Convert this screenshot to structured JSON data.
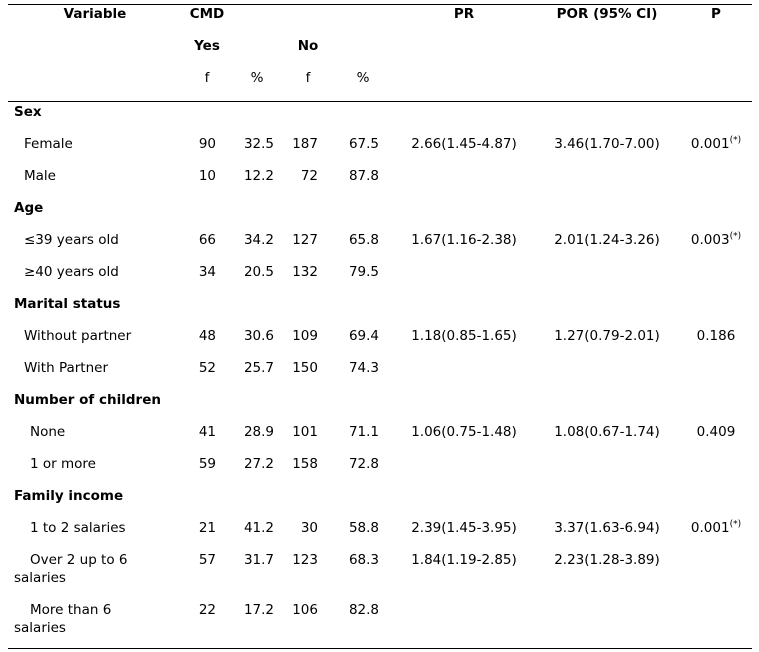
{
  "header": {
    "variable": "Variable",
    "cmd": "CMD",
    "yes": "Yes",
    "no": "No",
    "pr": "PR",
    "por": "POR (95% CI)",
    "p": "P",
    "f1": "f",
    "pct1": "%",
    "f2": "f",
    "pct2": "%"
  },
  "sections": [
    {
      "label": "Sex",
      "rows": [
        {
          "label": "Female",
          "yes_f": "90",
          "yes_pct": "32.5",
          "no_f": "187",
          "no_pct": "67.5",
          "pr": "2.66(1.45-4.87)",
          "por": "3.46(1.70-7.00)",
          "p": "0.001",
          "p_note": "(*)"
        },
        {
          "label": "Male",
          "yes_f": "10",
          "yes_pct": "12.2",
          "no_f": "72",
          "no_pct": "87.8",
          "pr": "",
          "por": "",
          "p": "",
          "p_note": ""
        }
      ]
    },
    {
      "label": "Age",
      "rows": [
        {
          "label": "≤39 years old",
          "yes_f": "66",
          "yes_pct": "34.2",
          "no_f": "127",
          "no_pct": "65.8",
          "pr": "1.67(1.16-2.38)",
          "por": "2.01(1.24-3.26)",
          "p": "0.003",
          "p_note": "(*)"
        },
        {
          "label": "≥40 years old",
          "yes_f": "34",
          "yes_pct": "20.5",
          "no_f": "132",
          "no_pct": "79.5",
          "pr": "",
          "por": "",
          "p": "",
          "p_note": ""
        }
      ]
    },
    {
      "label": "Marital status",
      "rows": [
        {
          "label": "Without partner",
          "yes_f": "48",
          "yes_pct": "30.6",
          "no_f": "109",
          "no_pct": "69.4",
          "pr": "1.18(0.85-1.65)",
          "por": "1.27(0.79-2.01)",
          "p": "0.186",
          "p_note": ""
        },
        {
          "label": "With Partner",
          "yes_f": "52",
          "yes_pct": "25.7",
          "no_f": "150",
          "no_pct": "74.3",
          "pr": "",
          "por": "",
          "p": "",
          "p_note": ""
        }
      ]
    },
    {
      "label": "Number of children",
      "rows": [
        {
          "label": "None",
          "yes_f": "41",
          "yes_pct": "28.9",
          "no_f": "101",
          "no_pct": "71.1",
          "pr": "1.06(0.75-1.48)",
          "por": "1.08(0.67-1.74)",
          "p": "0.409",
          "p_note": ""
        },
        {
          "label": "1 or more",
          "yes_f": "59",
          "yes_pct": "27.2",
          "no_f": "158",
          "no_pct": "72.8",
          "pr": "",
          "por": "",
          "p": "",
          "p_note": ""
        }
      ]
    },
    {
      "label": "Family income",
      "rows": [
        {
          "label": "1 to 2 salaries",
          "yes_f": "21",
          "yes_pct": "41.2",
          "no_f": "30",
          "no_pct": "58.8",
          "pr": "2.39(1.45-3.95)",
          "por": "3.37(1.63-6.94)",
          "p": "0.001",
          "p_note": "(*)"
        },
        {
          "label": "Over 2 up to 6",
          "label_2": "salaries",
          "yes_f": "57",
          "yes_pct": "31.7",
          "no_f": "123",
          "no_pct": "68.3",
          "pr": "1.84(1.19-2.85)",
          "por": "2.23(1.28-3.89)",
          "p": "",
          "p_note": ""
        },
        {
          "label": "More than 6",
          "label_2": "salaries",
          "yes_f": "22",
          "yes_pct": "17.2",
          "no_f": "106",
          "no_pct": "82.8",
          "pr": "",
          "por": "",
          "p": "",
          "p_note": ""
        }
      ]
    }
  ]
}
